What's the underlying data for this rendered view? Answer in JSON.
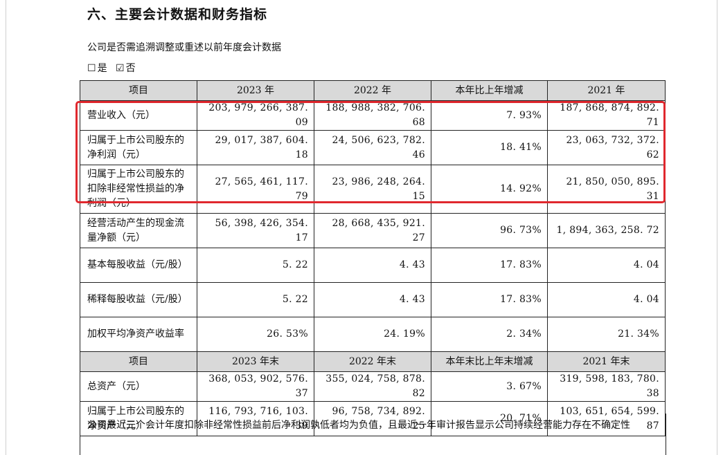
{
  "heading": "六、主要会计数据和财务指标",
  "question": "公司是否需追溯调整或重述以前年度会计数据",
  "answer": {
    "yes_box": "☐",
    "yes_label": "是",
    "no_box": "☑",
    "no_label": "否"
  },
  "table1": {
    "headers": [
      "项目",
      "2023 年",
      "2022 年",
      "本年比上年增减",
      "2021 年"
    ],
    "rows": [
      {
        "item": "营业收入（元）",
        "v2023": "203, 979, 266, 387. 09",
        "v2022": "188, 988, 382, 706. 68",
        "change": "7. 93%",
        "v2021": "187, 868, 874, 892. 71"
      },
      {
        "item": "归属于上市公司股东的净利润（元）",
        "v2023": "29, 017, 387, 604. 18",
        "v2022": "24, 506, 623, 782. 46",
        "change": "18. 41%",
        "v2021": "23, 063, 732, 372. 62"
      },
      {
        "item": "归属于上市公司股东的扣除非经常性损益的净利润（元）",
        "v2023": "27, 565, 461, 117. 79",
        "v2022": "23, 986, 248, 264. 15",
        "change": "14. 92%",
        "v2021": "21, 850, 050, 895. 31"
      },
      {
        "item": "经营活动产生的现金流量净额（元）",
        "v2023": "56, 398, 426, 354. 17",
        "v2022": "28, 668, 435, 921. 27",
        "change": "96. 73%",
        "v2021": "1, 894, 363, 258. 72"
      },
      {
        "item": "基本每股收益（元/股）",
        "v2023": "5. 22",
        "v2022": "4. 43",
        "change": "17. 83%",
        "v2021": "4. 04"
      },
      {
        "item": "稀释每股收益（元/股）",
        "v2023": "5. 22",
        "v2022": "4. 43",
        "change": "17. 83%",
        "v2021": "4. 04"
      },
      {
        "item": "加权平均净资产收益率",
        "v2023": "26. 53%",
        "v2022": "24. 19%",
        "change": "2. 34%",
        "v2021": "21. 34%"
      }
    ]
  },
  "table2": {
    "headers": [
      "项目",
      "2023 年末",
      "2022 年末",
      "本年末比上年末增减",
      "2021 年末"
    ],
    "rows": [
      {
        "item": "总资产（元）",
        "v2023": "368, 053, 902, 576. 37",
        "v2022": "355, 024, 758, 878. 82",
        "change": "3. 67%",
        "v2021": "319, 598, 183, 780. 38"
      },
      {
        "item": "归属于上市公司股东的净资产（元）",
        "v2023": "116, 793, 716, 103. 39",
        "v2022": "96, 758, 734, 892. 25",
        "change": "20. 71%",
        "v2021": "103, 651, 654, 599. 87"
      }
    ]
  },
  "footnote": "公司最近三个会计年度扣除非经常性损益前后净利润孰低者均为负值，且最近一年审计报告显示公司持续经营能力存在不确定性",
  "colors": {
    "highlight": "#e0282e",
    "header_bg": "#d9d9d9"
  }
}
